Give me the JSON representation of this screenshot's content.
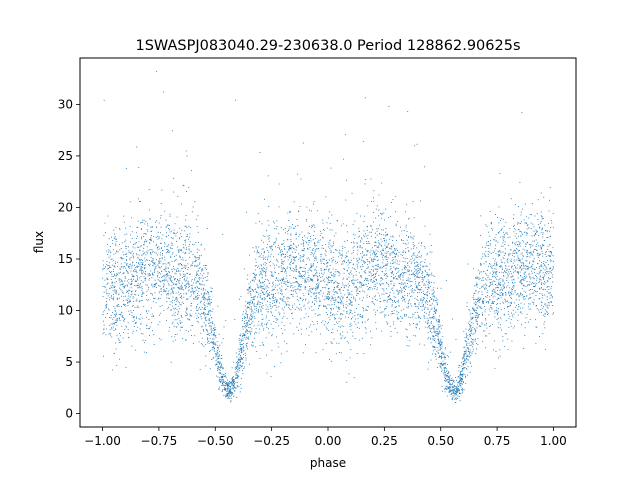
{
  "chart_data": {
    "type": "scatter",
    "title": "1SWASPJ083040.29-230638.0 Period 128862.90625s",
    "xlabel": "phase",
    "ylabel": "flux",
    "xlim": [
      -1.1,
      1.1
    ],
    "ylim": [
      -1.3,
      34.5
    ],
    "xticks": [
      -1.0,
      -0.75,
      -0.5,
      -0.25,
      0.0,
      0.25,
      0.5,
      0.75,
      1.0
    ],
    "xtick_labels": [
      "−1.00",
      "−0.75",
      "−0.50",
      "−0.25",
      "0.00",
      "0.25",
      "0.50",
      "0.75",
      "1.00"
    ],
    "yticks": [
      0,
      5,
      10,
      15,
      20,
      25,
      30
    ],
    "ytick_labels": [
      "0",
      "5",
      "10",
      "15",
      "20",
      "25",
      "30"
    ],
    "grid": false,
    "point_color": "#1f77b4",
    "light_curve": {
      "phase_range": [
        -1.0,
        1.0
      ],
      "primary_minima_phase": [
        -0.44,
        0.56
      ],
      "minimum_flux": 2.2,
      "maximum_phase": [
        -0.78,
        -0.08,
        0.22,
        0.9
      ],
      "maximum_flux": 13.5,
      "scatter_flux_range": [
        8,
        24
      ],
      "outlier_flux_max": 33.2
    }
  }
}
